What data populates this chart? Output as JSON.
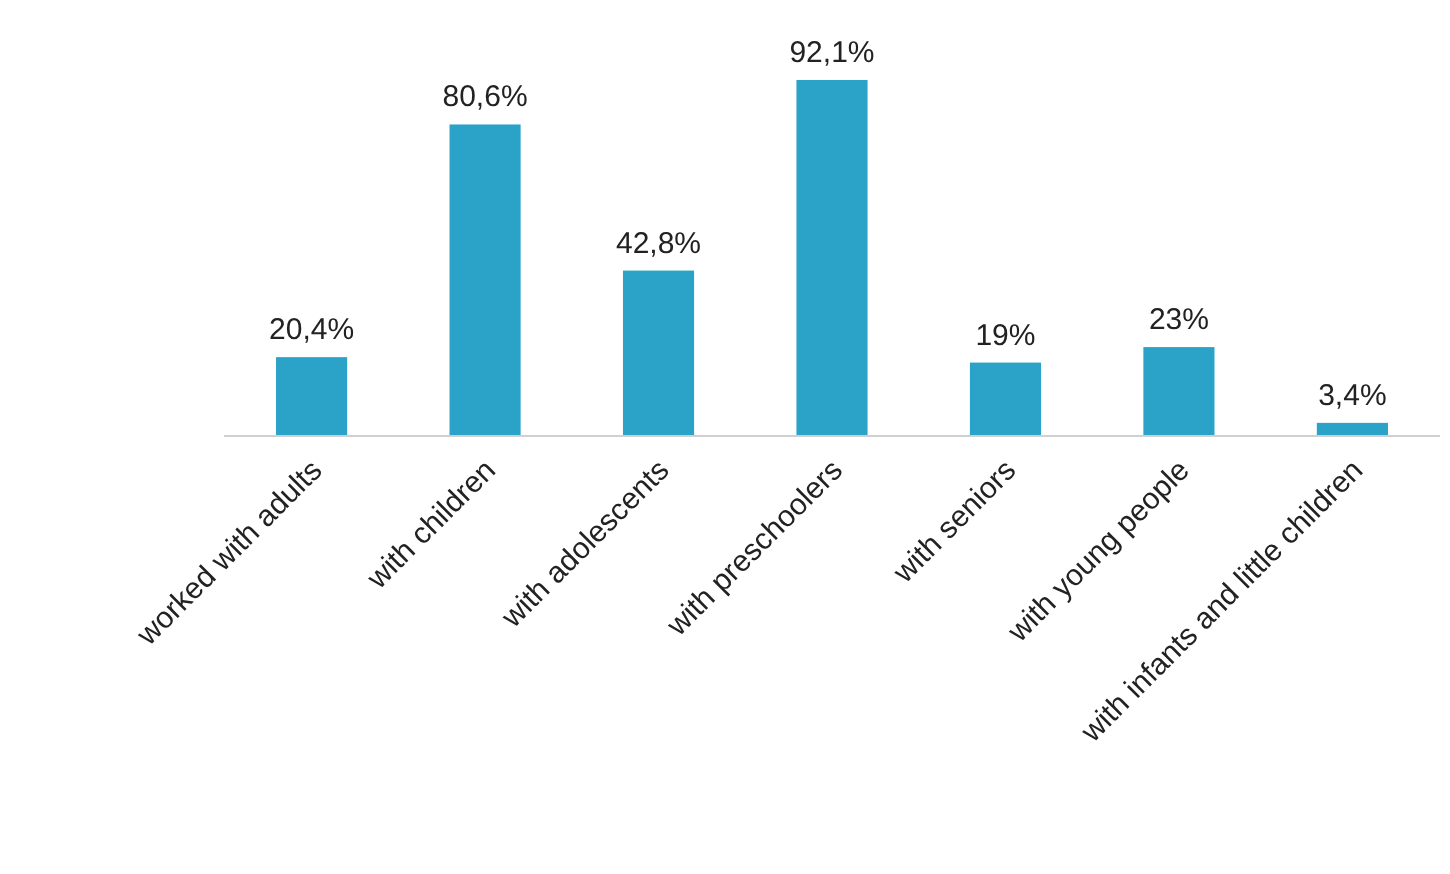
{
  "chart_data": {
    "type": "bar",
    "categories": [
      "worked with adults",
      "with children",
      "with adolescents",
      "with preschoolers",
      "with seniors",
      "with young people",
      "with infants and little children"
    ],
    "values": [
      20.4,
      80.6,
      42.8,
      92.1,
      19,
      23,
      3.4
    ],
    "value_labels": [
      "20,4%",
      "80,6%",
      "42,8%",
      "92,1%",
      "19%",
      "23%",
      "3,4%"
    ],
    "color": "#2ba3c9"
  }
}
